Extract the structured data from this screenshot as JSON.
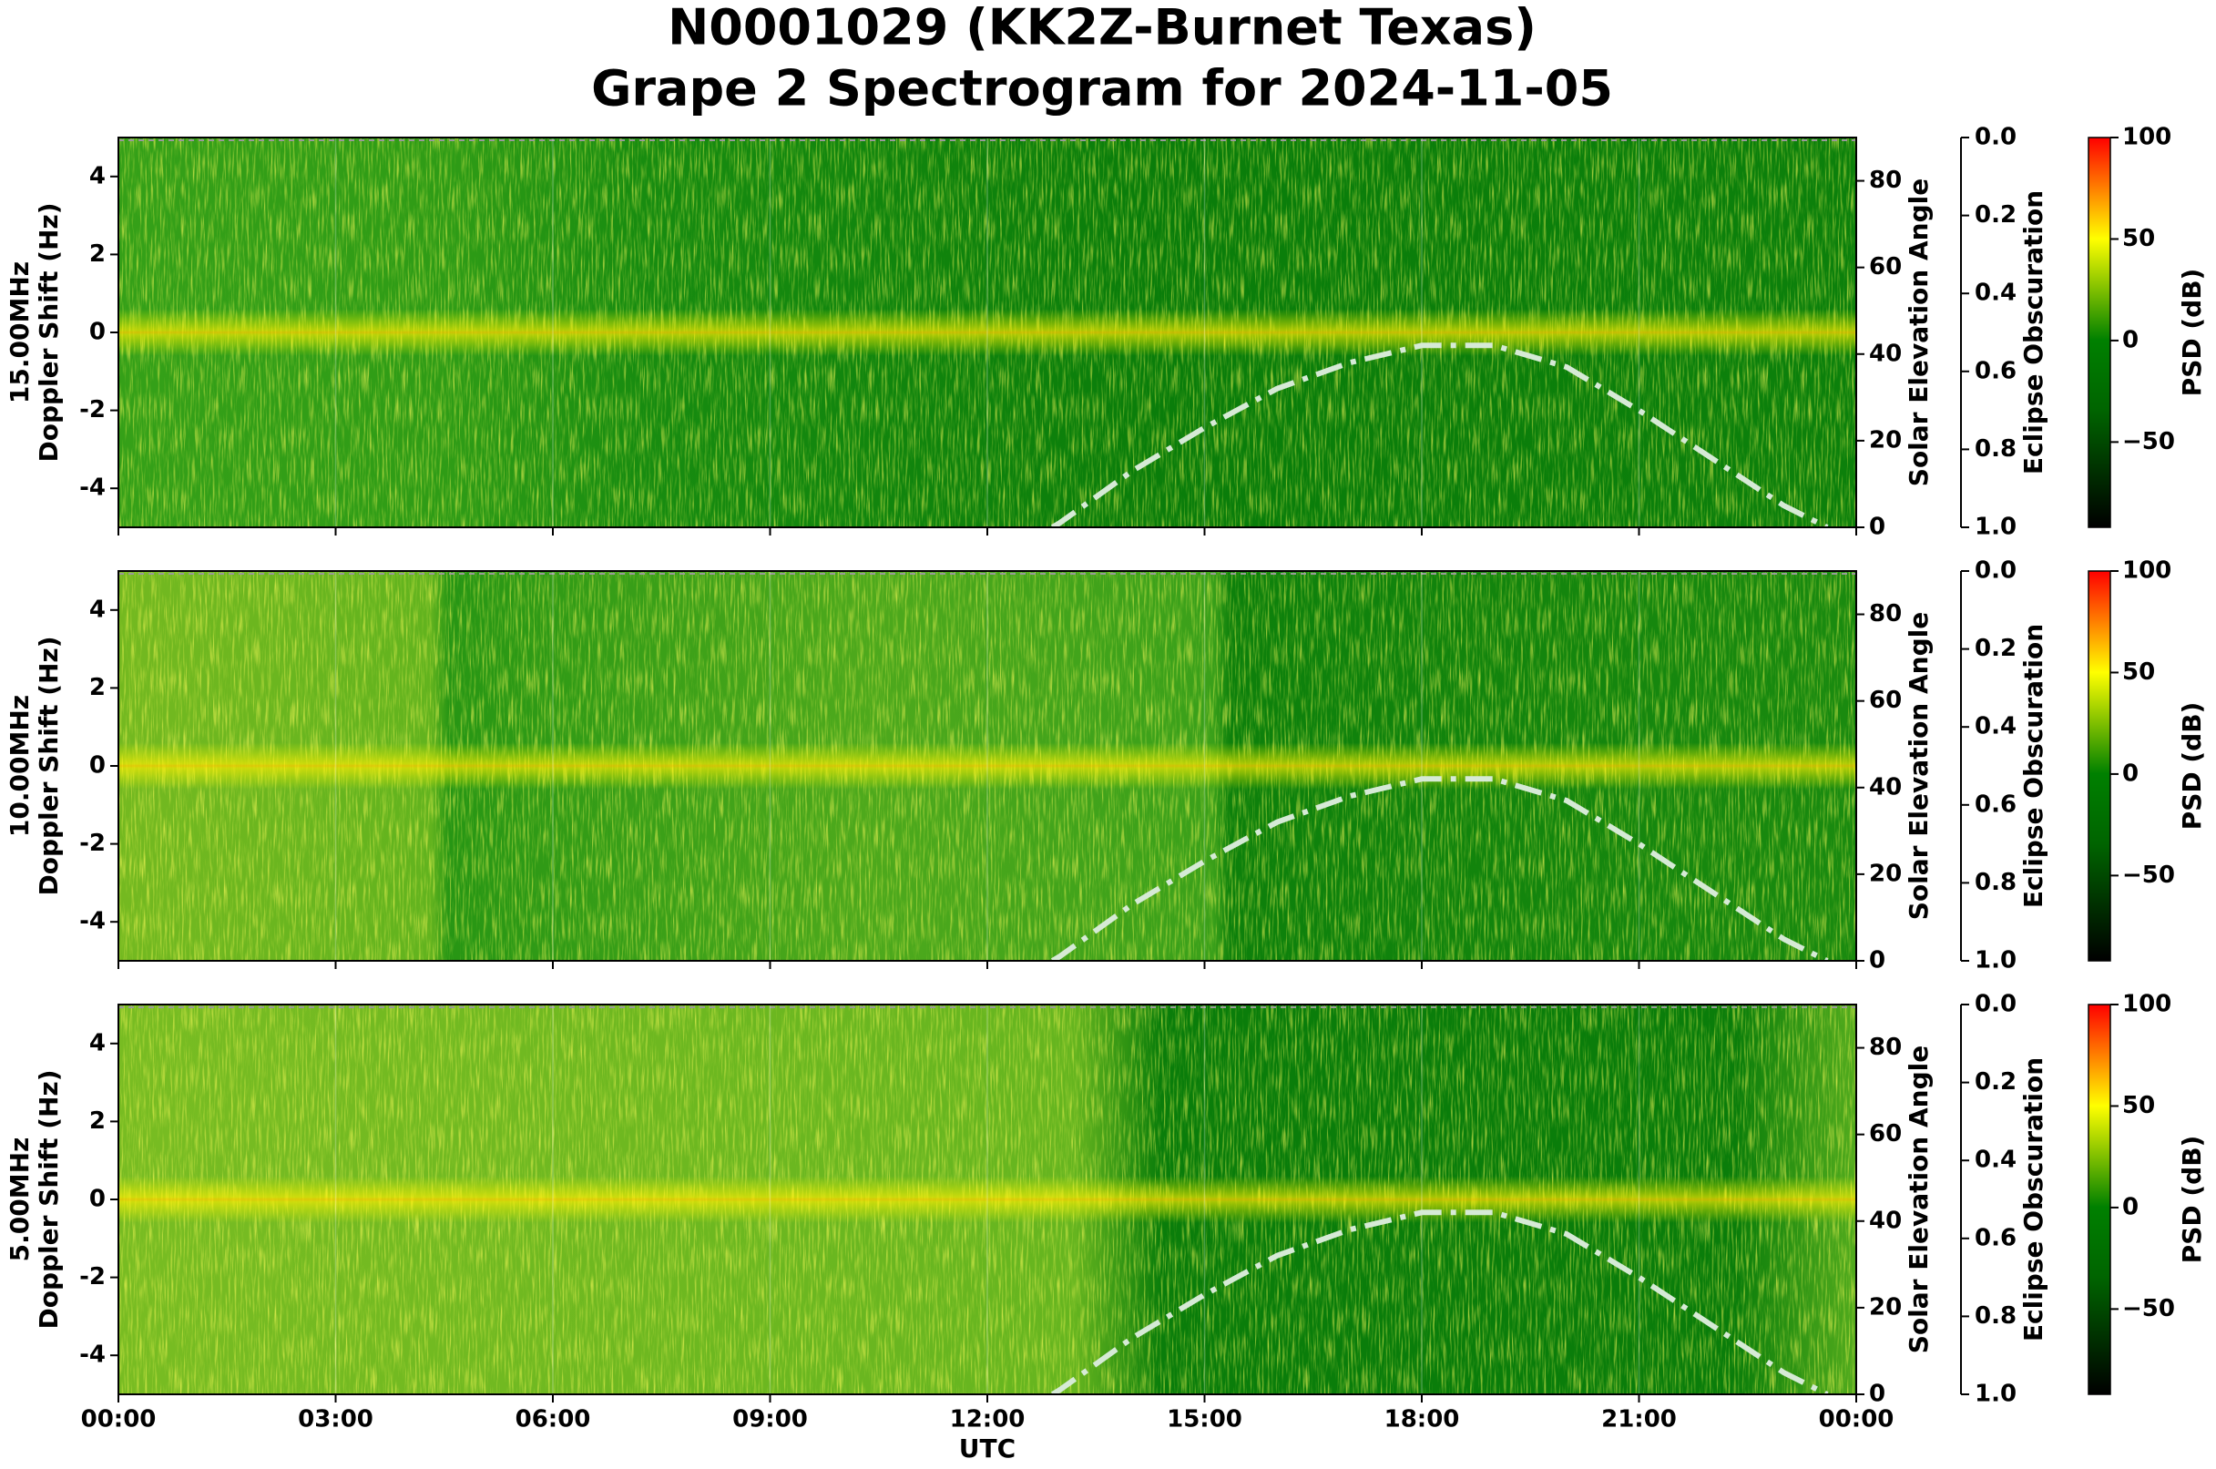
{
  "chart_data": {
    "type": "spectrogram",
    "title": "N0001029 (KK2Z-Burnet Texas)",
    "subtitle": "Grape 2 Spectrogram for 2024-11-05",
    "xlabel": "UTC",
    "xlim": [
      0,
      24
    ],
    "xticks": [
      {
        "value": 0,
        "label": "00:00"
      },
      {
        "value": 3,
        "label": "03:00"
      },
      {
        "value": 6,
        "label": "06:00"
      },
      {
        "value": 9,
        "label": "09:00"
      },
      {
        "value": 12,
        "label": "12:00"
      },
      {
        "value": 15,
        "label": "15:00"
      },
      {
        "value": 18,
        "label": "18:00"
      },
      {
        "value": 21,
        "label": "21:00"
      },
      {
        "value": 24,
        "label": "00:00"
      }
    ],
    "colormap": [
      "#000000",
      "#006400",
      "#008000",
      "#ffff00",
      "#ff0000"
    ],
    "panels": [
      {
        "ylabel": [
          "15.00MHz",
          "Doppler Shift (Hz)"
        ],
        "ylim": [
          -5,
          5
        ],
        "yticks": [
          -4,
          -2,
          0,
          2,
          4
        ],
        "y2label": "Solar Elevation Angle",
        "y2lim": [
          0,
          90
        ],
        "y2ticks": [
          0,
          20,
          40,
          60,
          80
        ],
        "y3label": "Eclipse Obscuration",
        "y3lim": [
          0,
          1
        ],
        "y3ticks": [
          {
            "value": 0,
            "label": "0.0"
          },
          {
            "value": 0.2,
            "label": "0.2"
          },
          {
            "value": 0.4,
            "label": "0.4"
          },
          {
            "value": 0.6,
            "label": "0.6"
          },
          {
            "value": 0.8,
            "label": "0.8"
          },
          {
            "value": 1,
            "label": "1.0"
          }
        ],
        "clabel": "PSD (dB)",
        "clim": [
          -92,
          100
        ],
        "cticks": [
          100,
          50,
          0,
          {
            "value": -50,
            "label": "−50"
          }
        ],
        "series": [
          {
            "axis": "y2",
            "color": "#d6ead6",
            "x": [
              12.9,
              13,
              14,
              15,
              16,
              17,
              18,
              19,
              20,
              21,
              22,
              23,
              23.6
            ],
            "values": [
              0,
              1,
              13,
              23,
              32,
              38,
              42,
              42,
              37,
              27,
              16,
              5,
              0
            ]
          }
        ]
      },
      {
        "ylabel": [
          "10.00MHz",
          "Doppler Shift (Hz)"
        ],
        "ylim": [
          -5,
          5
        ],
        "yticks": [
          -4,
          -2,
          0,
          2,
          4
        ],
        "y2label": "Solar Elevation Angle",
        "y2lim": [
          0,
          90
        ],
        "y2ticks": [
          0,
          20,
          40,
          60,
          80
        ],
        "y3label": "Eclipse Obscuration",
        "y3lim": [
          0,
          1
        ],
        "y3ticks": [
          {
            "value": 0,
            "label": "0.0"
          },
          {
            "value": 0.2,
            "label": "0.2"
          },
          {
            "value": 0.4,
            "label": "0.4"
          },
          {
            "value": 0.6,
            "label": "0.6"
          },
          {
            "value": 0.8,
            "label": "0.8"
          },
          {
            "value": 1,
            "label": "1.0"
          }
        ],
        "clabel": "PSD (dB)",
        "clim": [
          -92,
          100
        ],
        "cticks": [
          100,
          50,
          0,
          {
            "value": -50,
            "label": "−50"
          }
        ],
        "series": [
          {
            "axis": "y2",
            "color": "#d6ead6",
            "x": [
              12.9,
              13,
              14,
              15,
              16,
              17,
              18,
              19,
              20,
              21,
              22,
              23,
              23.6
            ],
            "values": [
              0,
              1,
              13,
              23,
              32,
              38,
              42,
              42,
              37,
              27,
              16,
              5,
              0
            ]
          }
        ]
      },
      {
        "ylabel": [
          "5.00MHz",
          "Doppler Shift (Hz)"
        ],
        "ylim": [
          -5,
          5
        ],
        "yticks": [
          -4,
          -2,
          0,
          2,
          4
        ],
        "y2label": "Solar Elevation Angle",
        "y2lim": [
          0,
          90
        ],
        "y2ticks": [
          0,
          20,
          40,
          60,
          80
        ],
        "y3label": "Eclipse Obscuration",
        "y3lim": [
          0,
          1
        ],
        "y3ticks": [
          {
            "value": 0,
            "label": "0.0"
          },
          {
            "value": 0.2,
            "label": "0.2"
          },
          {
            "value": 0.4,
            "label": "0.4"
          },
          {
            "value": 0.6,
            "label": "0.6"
          },
          {
            "value": 0.8,
            "label": "0.8"
          },
          {
            "value": 1,
            "label": "1.0"
          }
        ],
        "clabel": "PSD (dB)",
        "clim": [
          -92,
          100
        ],
        "cticks": [
          100,
          50,
          0,
          {
            "value": -50,
            "label": "−50"
          }
        ],
        "series": [
          {
            "axis": "y2",
            "color": "#d6ead6",
            "x": [
              12.9,
              13,
              14,
              15,
              16,
              17,
              18,
              19,
              20,
              21,
              22,
              23,
              23.6
            ],
            "values": [
              0,
              1,
              13,
              23,
              32,
              38,
              42,
              42,
              37,
              27,
              16,
              5,
              0
            ]
          }
        ]
      }
    ]
  }
}
